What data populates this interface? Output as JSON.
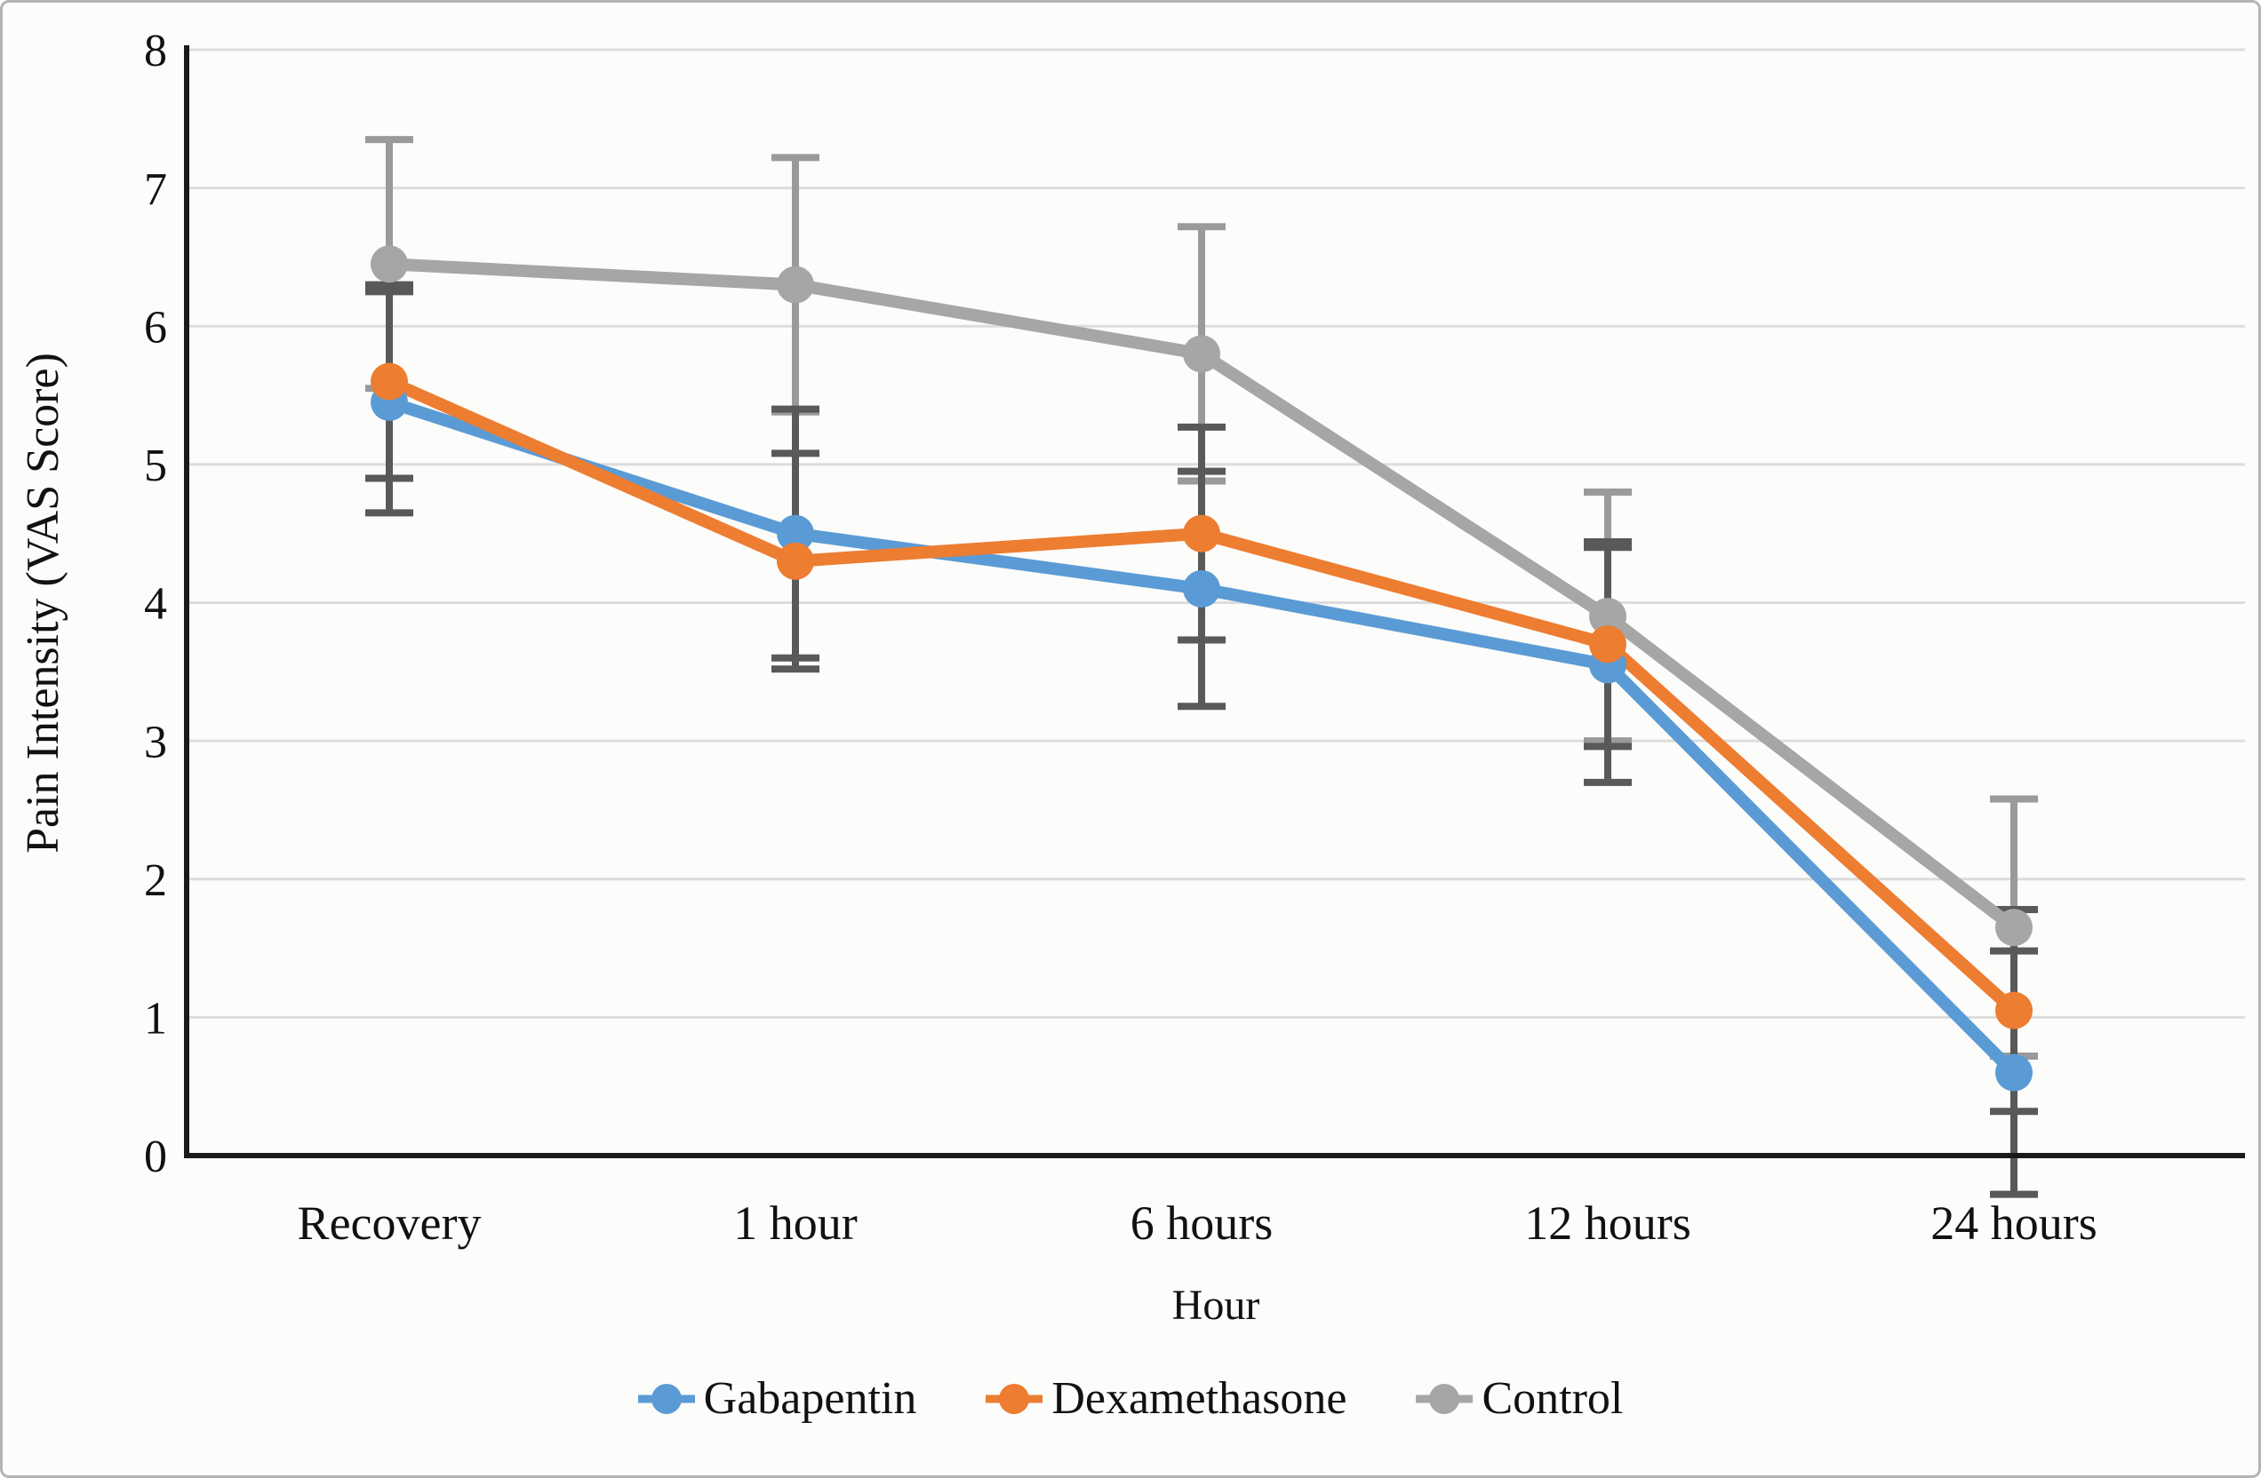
{
  "chart_data": {
    "type": "line",
    "title": "",
    "xlabel": "Hour",
    "ylabel": "Pain Intensity (VAS Score)",
    "categories": [
      "Recovery",
      "1 hour",
      "6 hours",
      "12 hours",
      "24 hours"
    ],
    "yticks": [
      0,
      1,
      2,
      3,
      4,
      5,
      6,
      7,
      8
    ],
    "ylim": [
      0,
      8
    ],
    "grid": "horizontal",
    "legend_position": "bottom",
    "error_bars": true,
    "series": [
      {
        "name": "Gabapentin",
        "color": "#5B9BD5",
        "errbar_color": "#595959",
        "values": [
          5.45,
          4.5,
          4.1,
          3.55,
          0.6
        ],
        "errors": [
          0.8,
          0.9,
          0.85,
          0.85,
          0.88
        ]
      },
      {
        "name": "Dexamethasone",
        "color": "#ED7D31",
        "errbar_color": "#595959",
        "values": [
          5.6,
          4.3,
          4.5,
          3.7,
          1.05
        ],
        "errors": [
          0.7,
          0.78,
          0.77,
          0.74,
          0.73
        ]
      },
      {
        "name": "Control",
        "color": "#A6A6A6",
        "errbar_color": "#9a9a9a",
        "values": [
          6.45,
          6.3,
          5.8,
          3.9,
          1.65
        ],
        "errors": [
          0.9,
          0.92,
          0.92,
          0.9,
          0.93
        ]
      }
    ],
    "colors": {
      "axis": "#1a1a1a",
      "gridline": "#dcdcdc",
      "text": "#111111"
    }
  }
}
